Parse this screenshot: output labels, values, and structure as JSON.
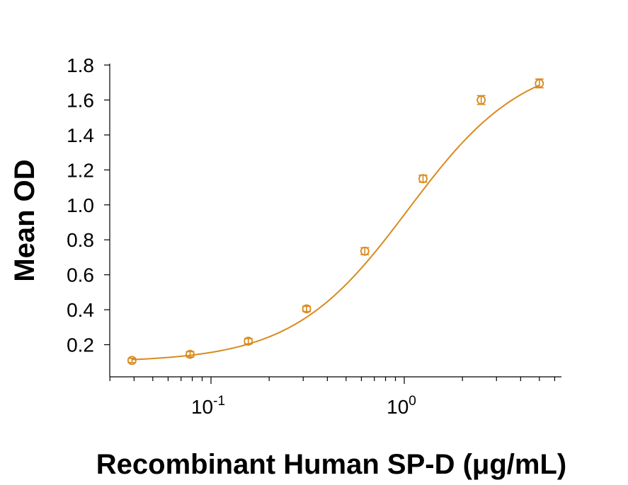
{
  "chart_data": {
    "type": "scatter",
    "title": "",
    "xlabel": "Recombinant Human SP-D (μg/mL)",
    "ylabel": "Mean OD",
    "x_scale": "log",
    "xlim": [
      0.033,
      6.7
    ],
    "ylim": [
      0.05,
      1.8
    ],
    "x_ticks": [
      {
        "value": 0.1,
        "base": "10",
        "exponent": "-1"
      },
      {
        "value": 1,
        "base": "10",
        "exponent": "0"
      }
    ],
    "y_ticks": [
      "0.2",
      "0.4",
      "0.6",
      "0.8",
      "1.0",
      "1.2",
      "1.4",
      "1.6",
      "1.8"
    ],
    "grid": false,
    "legend": "none",
    "color": "#D98A1E",
    "series": [
      {
        "x": [
          0.039,
          0.078,
          0.156,
          0.3125,
          0.625,
          1.25,
          2.5,
          5.0
        ],
        "y": [
          0.11,
          0.145,
          0.22,
          0.405,
          0.735,
          1.15,
          1.6,
          1.695
        ],
        "error": [
          0.012,
          0.015,
          0.015,
          0.015,
          0.02,
          0.02,
          0.025,
          0.025
        ]
      }
    ],
    "fit": {
      "model": "4PL",
      "bottom": 0.1,
      "top": 1.85,
      "ec50": 1.05,
      "hill": 1.45
    }
  }
}
